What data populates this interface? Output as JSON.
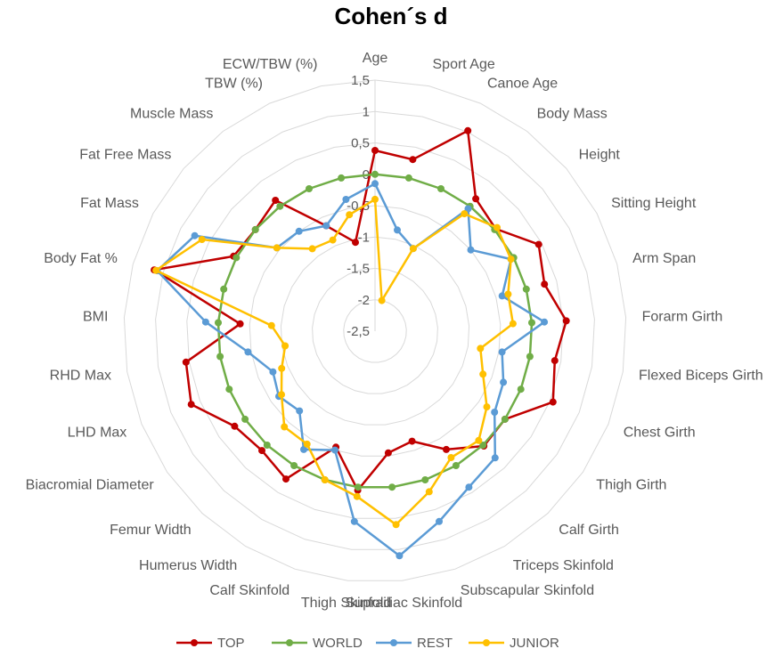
{
  "chart_data": {
    "type": "radar",
    "title": "Cohen´s d",
    "categories": [
      "Age",
      "Sport Age",
      "Canoe Age",
      "Body Mass",
      "Height",
      "Sitting Height",
      "Arm Span",
      "Forarm Girth",
      "Flexed Biceps Girth",
      "Chest Girth",
      "Thigh Girth",
      "Calf Girth",
      "Triceps Skinfold",
      "Subscapular Skinfold",
      "Suprailiac Skinfold",
      "Thigh Skinfold",
      "Calf Skinfold",
      "Humerus Width",
      "Femur Width",
      "Biacromial Diameter",
      "LHD Max",
      "RHD Max",
      "BMI",
      "Body Fat %",
      "Fat Mass",
      "Fat Free Mass",
      "Muscle Mass",
      "TBW (%)",
      "ECW/TBW (%)"
    ],
    "rlim": [
      -2.5,
      1.5
    ],
    "ticks": [
      "-2,5",
      "-2",
      "-1,5",
      "-1",
      "-0,5",
      "0",
      "0,5",
      "1",
      "1,5"
    ],
    "tick_values": [
      -2.5,
      -2,
      -1.5,
      -1,
      -0.5,
      0,
      0.5,
      1,
      1.5
    ],
    "grid": true,
    "legend_position": "bottom",
    "series": [
      {
        "name": "TOP",
        "color": "#C00000",
        "values": [
          0.38,
          0.3,
          1.02,
          0.15,
          0.02,
          0.45,
          0.3,
          0.55,
          0.4,
          0.55,
          0.0,
          0.02,
          -0.3,
          -0.65,
          -0.55,
          0.05,
          -0.55,
          0.25,
          0.12,
          0.2,
          0.65,
          0.55,
          -0.35,
          1.15,
          0.05,
          0.0,
          0.12,
          -0.65,
          -1.05
        ]
      },
      {
        "name": "WORLD",
        "color": "#70AD47",
        "values": [
          0.0,
          0.0,
          0.0,
          0.0,
          0.0,
          0.0,
          0.0,
          0.0,
          0.0,
          0.0,
          0.0,
          0.0,
          0.0,
          0.0,
          0.0,
          0.0,
          0.0,
          0.0,
          0.0,
          0.0,
          0.0,
          0.0,
          0.0,
          0.0,
          0.0,
          0.0,
          0.0,
          0.0,
          0.0
        ]
      },
      {
        "name": "REST",
        "color": "#5B9BD5",
        "values": [
          -0.15,
          -0.85,
          -1.05,
          -0.05,
          -0.5,
          -0.05,
          -0.4,
          0.2,
          -0.45,
          -0.3,
          -0.2,
          0.28,
          0.4,
          0.7,
          1.1,
          0.55,
          -0.5,
          -0.3,
          -0.75,
          -0.65,
          -0.75,
          -0.45,
          0.2,
          1.1,
          0.75,
          -0.45,
          -0.5,
          -0.65,
          -0.35
        ]
      },
      {
        "name": "JUNIOR",
        "color": "#FFC000",
        "values": [
          -0.4,
          -2.0,
          -1.05,
          -0.15,
          0.05,
          -0.05,
          -0.3,
          -0.3,
          -0.8,
          -0.65,
          -0.35,
          -0.1,
          -0.15,
          0.2,
          0.6,
          0.15,
          0.0,
          -0.4,
          -0.4,
          -0.7,
          -0.9,
          -1.05,
          -0.85,
          1.12,
          0.62,
          -0.45,
          -0.85,
          -0.9,
          -0.6
        ]
      }
    ]
  }
}
